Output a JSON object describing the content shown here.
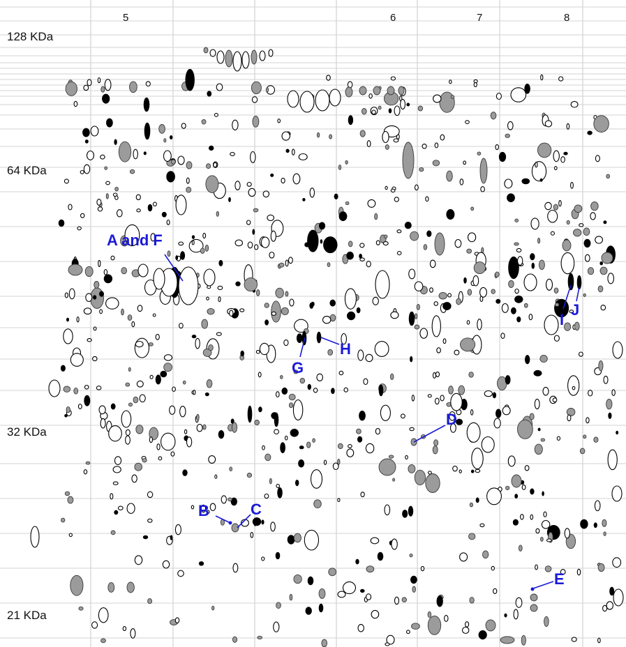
{
  "ph_labels": [
    "5",
    "6",
    "7",
    "8"
  ],
  "mw_labels": [
    "128 KDa",
    "64 KDa",
    "32 KDa",
    "21 KDa"
  ],
  "annotations": [
    "A and F",
    "B",
    "C",
    "D",
    "E",
    "G",
    "H",
    "I",
    "J"
  ],
  "legend_colors": {
    "open": "#ffffff",
    "grey": "#9b9b9b",
    "black": "#000000",
    "annotation": "#1a1ad8"
  }
}
